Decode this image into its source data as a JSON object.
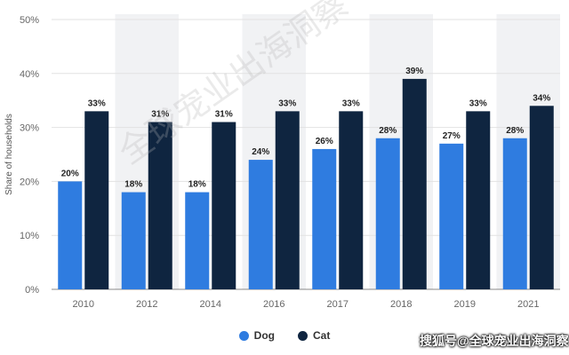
{
  "chart_data": {
    "type": "bar",
    "categories": [
      "2010",
      "2012",
      "2014",
      "2016",
      "2017",
      "2018",
      "2019",
      "2021"
    ],
    "series": [
      {
        "name": "Dog",
        "values": [
          20,
          18,
          18,
          24,
          26,
          28,
          27,
          28
        ],
        "color": "#2f7ce0"
      },
      {
        "name": "Cat",
        "values": [
          33,
          31,
          31,
          33,
          33,
          39,
          33,
          34
        ],
        "color": "#0f2540"
      }
    ],
    "ylabel": "Share of households",
    "ylim": [
      0,
      50
    ],
    "yticks": [
      0,
      10,
      20,
      30,
      40,
      50
    ],
    "ytick_labels": [
      "0%",
      "10%",
      "20%",
      "30%",
      "40%",
      "50%"
    ],
    "value_suffix": "%",
    "grid": true,
    "legend_position": "bottom-center",
    "band_color": "#f1f2f4"
  },
  "watermark": {
    "footer": "搜狐号@全球宠业出海洞察",
    "background": "全球宠业出海洞察"
  }
}
